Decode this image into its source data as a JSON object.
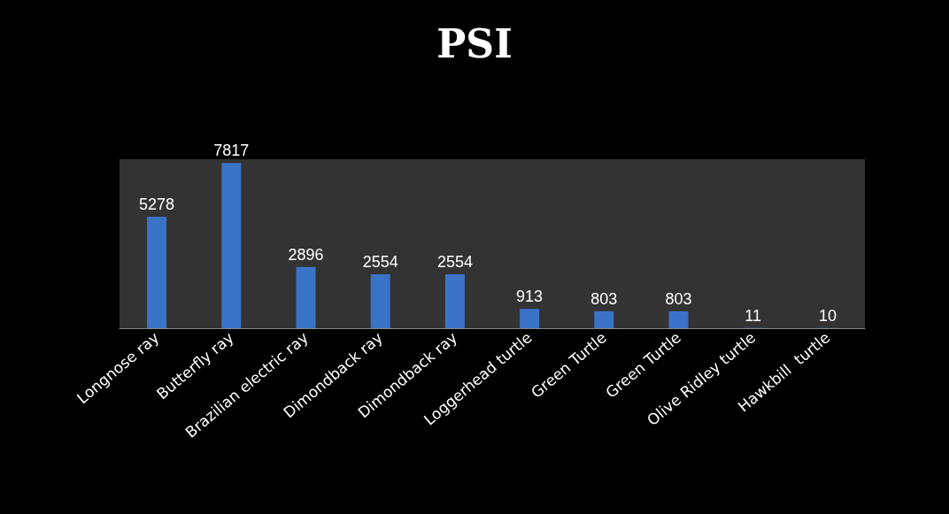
{
  "chart_data": {
    "type": "bar",
    "title": "PSI",
    "categories": [
      "Longnose ray",
      "Butterfly ray",
      "Brazilian electric ray",
      "Dimondback ray",
      "Dimondback ray",
      "Loggerhead turtle",
      "Green Turtle",
      "Green Turtle",
      "Olive Ridley turtle",
      "Hawkbill  turtle"
    ],
    "values": [
      5278,
      7817,
      2896,
      2554,
      2554,
      913,
      803,
      803,
      11,
      10
    ],
    "color": "#3b73c9",
    "data_labels": true
  }
}
